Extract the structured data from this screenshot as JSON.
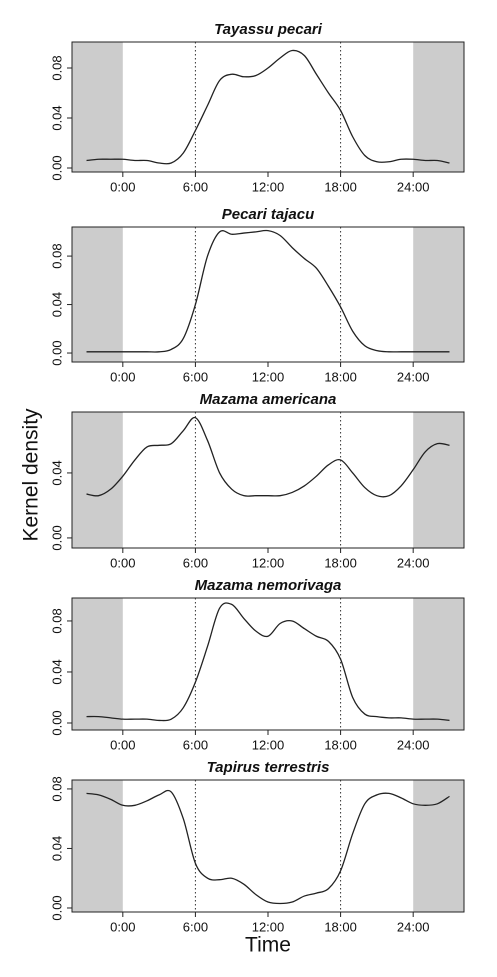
{
  "chart_data": [
    {
      "type": "line",
      "title": "Tayassu pecari",
      "x": [
        -3,
        -2,
        -1,
        0,
        1,
        2,
        3,
        4,
        5,
        6,
        7,
        8,
        9,
        10,
        11,
        12,
        13,
        14,
        15,
        16,
        17,
        18,
        19,
        20,
        21,
        22,
        23,
        24,
        25,
        26,
        27
      ],
      "series": [
        {
          "color": "#222222",
          "values": [
            0.006,
            0.007,
            0.007,
            0.007,
            0.006,
            0.006,
            0.004,
            0.004,
            0.012,
            0.03,
            0.05,
            0.07,
            0.075,
            0.073,
            0.074,
            0.08,
            0.088,
            0.094,
            0.09,
            0.075,
            0.06,
            0.046,
            0.025,
            0.01,
            0.005,
            0.005,
            0.007,
            0.007,
            0.006,
            0.006,
            0.004
          ]
        }
      ],
      "xlim": [
        -4.2,
        28.2
      ],
      "ylim": [
        -0.0032,
        0.1008
      ],
      "xticks": [
        {
          "value": 0,
          "label": "0:00"
        },
        {
          "value": 6,
          "label": "6:00"
        },
        {
          "value": 12,
          "label": "12:00"
        },
        {
          "value": 18,
          "label": "18:00"
        },
        {
          "value": 24,
          "label": "24:00"
        }
      ],
      "yticks": [
        {
          "value": 0,
          "label": "0.00"
        },
        {
          "value": 0.04,
          "label": "0.04"
        },
        {
          "value": 0.08,
          "label": "0.08"
        }
      ],
      "shaded_ranges": [
        [
          -4.2,
          0
        ],
        [
          24,
          28.2
        ]
      ],
      "vlines": [
        6,
        18
      ]
    },
    {
      "type": "line",
      "title": "Pecari tajacu",
      "x": [
        -3,
        -2,
        -1,
        0,
        1,
        2,
        3,
        4,
        5,
        6,
        7,
        8,
        9,
        10,
        11,
        12,
        13,
        14,
        15,
        16,
        17,
        18,
        19,
        20,
        21,
        22,
        23,
        24,
        25,
        26,
        27
      ],
      "series": [
        {
          "color": "#222222",
          "values": [
            0.001,
            0.001,
            0.001,
            0.001,
            0.001,
            0.001,
            0.001,
            0.003,
            0.012,
            0.04,
            0.08,
            0.1,
            0.098,
            0.099,
            0.1,
            0.101,
            0.097,
            0.087,
            0.078,
            0.07,
            0.055,
            0.038,
            0.018,
            0.006,
            0.002,
            0.001,
            0.001,
            0.001,
            0.001,
            0.001,
            0.001
          ]
        }
      ],
      "xlim": [
        -4.2,
        28.2
      ],
      "ylim": [
        -0.0074,
        0.104
      ],
      "xticks": [
        {
          "value": 0,
          "label": "0:00"
        },
        {
          "value": 6,
          "label": "6:00"
        },
        {
          "value": 12,
          "label": "12:00"
        },
        {
          "value": 18,
          "label": "18:00"
        },
        {
          "value": 24,
          "label": "24:00"
        }
      ],
      "yticks": [
        {
          "value": 0,
          "label": "0.00"
        },
        {
          "value": 0.04,
          "label": "0.04"
        },
        {
          "value": 0.08,
          "label": "0.08"
        }
      ],
      "shaded_ranges": [
        [
          -4.2,
          0
        ],
        [
          24,
          28.2
        ]
      ],
      "vlines": [
        6,
        18
      ]
    },
    {
      "type": "line",
      "title": "Mazama americana",
      "x": [
        -3,
        -2,
        -1,
        0,
        1,
        2,
        3,
        4,
        5,
        6,
        7,
        8,
        9,
        10,
        11,
        12,
        13,
        14,
        15,
        16,
        17,
        18,
        19,
        20,
        21,
        22,
        23,
        24,
        25,
        26,
        27
      ],
      "series": [
        {
          "color": "#222222",
          "values": [
            0.027,
            0.026,
            0.03,
            0.038,
            0.048,
            0.056,
            0.057,
            0.058,
            0.066,
            0.074,
            0.06,
            0.04,
            0.03,
            0.026,
            0.026,
            0.026,
            0.026,
            0.028,
            0.032,
            0.038,
            0.045,
            0.048,
            0.04,
            0.031,
            0.026,
            0.026,
            0.032,
            0.042,
            0.053,
            0.058,
            0.057
          ]
        }
      ],
      "xlim": [
        -4.2,
        28.2
      ],
      "ylim": [
        -0.0062,
        0.0775
      ],
      "xticks": [
        {
          "value": 0,
          "label": "0:00"
        },
        {
          "value": 6,
          "label": "6:00"
        },
        {
          "value": 12,
          "label": "12:00"
        },
        {
          "value": 18,
          "label": "18:00"
        },
        {
          "value": 24,
          "label": "24:00"
        }
      ],
      "yticks": [
        {
          "value": 0,
          "label": "0.00"
        },
        {
          "value": 0.04,
          "label": "0.04"
        }
      ],
      "shaded_ranges": [
        [
          -4.2,
          0
        ],
        [
          24,
          28.2
        ]
      ],
      "vlines": [
        6,
        18
      ]
    },
    {
      "type": "line",
      "title": "Mazama nemorivaga",
      "x": [
        -3,
        -2,
        -1,
        0,
        1,
        2,
        3,
        4,
        5,
        6,
        7,
        8,
        9,
        10,
        11,
        12,
        13,
        14,
        15,
        16,
        17,
        18,
        19,
        20,
        21,
        22,
        23,
        24,
        25,
        26,
        27
      ],
      "series": [
        {
          "color": "#222222",
          "values": [
            0.005,
            0.005,
            0.004,
            0.003,
            0.003,
            0.003,
            0.002,
            0.003,
            0.012,
            0.032,
            0.06,
            0.09,
            0.093,
            0.082,
            0.072,
            0.068,
            0.078,
            0.08,
            0.074,
            0.068,
            0.064,
            0.05,
            0.02,
            0.007,
            0.005,
            0.004,
            0.004,
            0.003,
            0.003,
            0.003,
            0.002
          ]
        }
      ],
      "xlim": [
        -4.2,
        28.2
      ],
      "ylim": [
        -0.0055,
        0.098
      ],
      "xticks": [
        {
          "value": 0,
          "label": "0:00"
        },
        {
          "value": 6,
          "label": "6:00"
        },
        {
          "value": 12,
          "label": "12:00"
        },
        {
          "value": 18,
          "label": "18:00"
        },
        {
          "value": 24,
          "label": "24:00"
        }
      ],
      "yticks": [
        {
          "value": 0,
          "label": "0.00"
        },
        {
          "value": 0.04,
          "label": "0.04"
        },
        {
          "value": 0.08,
          "label": "0.08"
        }
      ],
      "shaded_ranges": [
        [
          -4.2,
          0
        ],
        [
          24,
          28.2
        ]
      ],
      "vlines": [
        6,
        18
      ]
    },
    {
      "type": "line",
      "title": "Tapirus terrestris",
      "x": [
        -3,
        -2,
        -1,
        0,
        1,
        2,
        3,
        4,
        5,
        6,
        7,
        8,
        9,
        10,
        11,
        12,
        13,
        14,
        15,
        16,
        17,
        18,
        19,
        20,
        21,
        22,
        23,
        24,
        25,
        26,
        27
      ],
      "series": [
        {
          "color": "#222222",
          "values": [
            0.077,
            0.076,
            0.073,
            0.069,
            0.069,
            0.072,
            0.076,
            0.078,
            0.06,
            0.03,
            0.02,
            0.019,
            0.02,
            0.016,
            0.009,
            0.004,
            0.003,
            0.004,
            0.008,
            0.01,
            0.013,
            0.025,
            0.05,
            0.07,
            0.076,
            0.077,
            0.074,
            0.07,
            0.069,
            0.07,
            0.075
          ]
        }
      ],
      "xlim": [
        -4.2,
        28.2
      ],
      "ylim": [
        -0.0027,
        0.086
      ],
      "xticks": [
        {
          "value": 0,
          "label": "0:00"
        },
        {
          "value": 6,
          "label": "6:00"
        },
        {
          "value": 12,
          "label": "12:00"
        },
        {
          "value": 18,
          "label": "18:00"
        },
        {
          "value": 24,
          "label": "24:00"
        }
      ],
      "yticks": [
        {
          "value": 0,
          "label": "0.00"
        },
        {
          "value": 0.04,
          "label": "0.04"
        },
        {
          "value": 0.08,
          "label": "0.08"
        }
      ],
      "shaded_ranges": [
        [
          -4.2,
          0
        ],
        [
          24,
          28.2
        ]
      ],
      "vlines": [
        6,
        18
      ]
    }
  ],
  "ylabel": "Kernel density",
  "xlabel": "Time"
}
